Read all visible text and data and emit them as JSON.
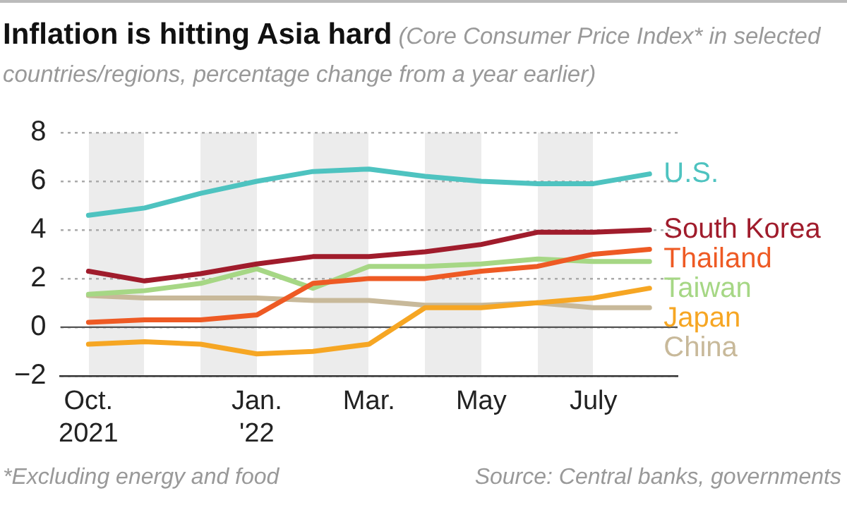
{
  "chart_data": {
    "type": "line",
    "title": "Inflation is hitting Asia hard",
    "subtitle": "(Core Consumer Price Index* in selected countries/regions, percentage change from a year earlier)",
    "categories": [
      "Oct.\n2021",
      null,
      null,
      "Jan.\n'22",
      null,
      "Mar.",
      null,
      "May",
      null,
      "July",
      null
    ],
    "series": [
      {
        "name": "U.S.",
        "color": "#4ec3c0",
        "values": [
          4.6,
          4.9,
          5.5,
          6.0,
          6.4,
          6.5,
          6.2,
          6.0,
          5.9,
          5.9,
          6.3
        ]
      },
      {
        "name": "South Korea",
        "color": "#a01c2c",
        "values": [
          2.3,
          1.9,
          2.2,
          2.6,
          2.9,
          2.9,
          3.1,
          3.4,
          3.9,
          3.9,
          4.0
        ]
      },
      {
        "name": "Thailand",
        "color": "#ee5a24",
        "values": [
          0.2,
          0.3,
          0.3,
          0.5,
          1.8,
          2.0,
          2.0,
          2.3,
          2.5,
          3.0,
          3.2
        ]
      },
      {
        "name": "Taiwan",
        "color": "#a6d785",
        "values": [
          1.35,
          1.5,
          1.8,
          2.4,
          1.6,
          2.5,
          2.5,
          2.6,
          2.8,
          2.7,
          2.7
        ]
      },
      {
        "name": "Japan",
        "color": "#f6a623",
        "values": [
          -0.7,
          -0.6,
          -0.7,
          -1.1,
          -1.0,
          -0.7,
          0.8,
          0.8,
          1.0,
          1.2,
          1.6
        ]
      },
      {
        "name": "China",
        "color": "#c8b99a",
        "values": [
          1.3,
          1.2,
          1.2,
          1.2,
          1.1,
          1.1,
          0.9,
          0.9,
          1.0,
          0.8,
          0.8
        ]
      }
    ],
    "ylim": [
      -2,
      8
    ],
    "yticks": [
      -2,
      0,
      2,
      4,
      6,
      8
    ],
    "grid": "y",
    "legend": false,
    "marker": "none",
    "line_style": "solid",
    "ref_lines": [
      {
        "axis": "y",
        "value": 0,
        "color": "#555555"
      }
    ],
    "annotations": [
      "*Excluding energy and food",
      "Source: Central banks, governments"
    ]
  }
}
